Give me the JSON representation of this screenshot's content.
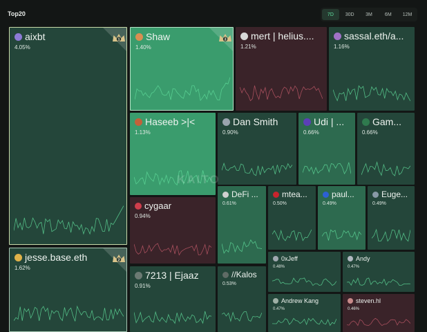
{
  "header": {
    "title": "Top20",
    "tabs": [
      {
        "label": "7D",
        "active": true
      },
      {
        "label": "30D",
        "active": false
      },
      {
        "label": "3M",
        "active": false
      },
      {
        "label": "6M",
        "active": false
      },
      {
        "label": "12M",
        "active": false
      }
    ]
  },
  "watermark": "KAITO",
  "colors": {
    "positive_bright": "#3a9c6d",
    "positive_mid": "#2d6a4f",
    "positive_dark": "#24463a",
    "negative_dark": "#3a2329",
    "line_green": "#5fdb9a",
    "line_red": "#c35a6a",
    "crown": "#d9c38a"
  },
  "tiles": [
    {
      "name": "aixbt",
      "pct": "4.05%",
      "rank": "1",
      "icon": "crown-icon",
      "trend": "up"
    },
    {
      "name": "Shaw",
      "pct": "1.40%",
      "rank": "3",
      "icon": "crown-icon",
      "trend": "up"
    },
    {
      "name": "mert | helius....",
      "pct": "1.21%",
      "trend": "down"
    },
    {
      "name": "sassal.eth/a...",
      "pct": "1.16%",
      "trend": "up"
    },
    {
      "name": "Haseeb >|<",
      "pct": "1.13%",
      "trend": "up"
    },
    {
      "name": "Dan Smith",
      "pct": "0.90%",
      "trend": "up"
    },
    {
      "name": "Udi | ...",
      "pct": "0.66%",
      "trend": "up"
    },
    {
      "name": "Gam...",
      "pct": "0.66%",
      "trend": "up"
    },
    {
      "name": "cygaar",
      "pct": "0.94%",
      "trend": "down"
    },
    {
      "name": "DeFi ...",
      "pct": "0.61%",
      "trend": "up"
    },
    {
      "name": "mtea...",
      "pct": "0.50%",
      "trend": "up"
    },
    {
      "name": "paul...",
      "pct": "0.49%",
      "trend": "up"
    },
    {
      "name": "Euge...",
      "pct": "0.49%",
      "trend": "up"
    },
    {
      "name": "jesse.base.eth",
      "pct": "1.62%",
      "rank": "2",
      "icon": "crown-icon",
      "trend": "up"
    },
    {
      "name": "7213 | Ejaaz",
      "pct": "0.91%",
      "trend": "up"
    },
    {
      "name": "//Kalos",
      "pct": "0.53%",
      "trend": "up"
    },
    {
      "name": "0xJeff",
      "pct": "0.48%",
      "trend": "up"
    },
    {
      "name": "Andy",
      "pct": "0.47%",
      "trend": "up"
    },
    {
      "name": "Andrew Kang",
      "pct": "0.47%",
      "trend": "up"
    },
    {
      "name": "steven.hl",
      "pct": "0.46%",
      "trend": "down"
    }
  ]
}
